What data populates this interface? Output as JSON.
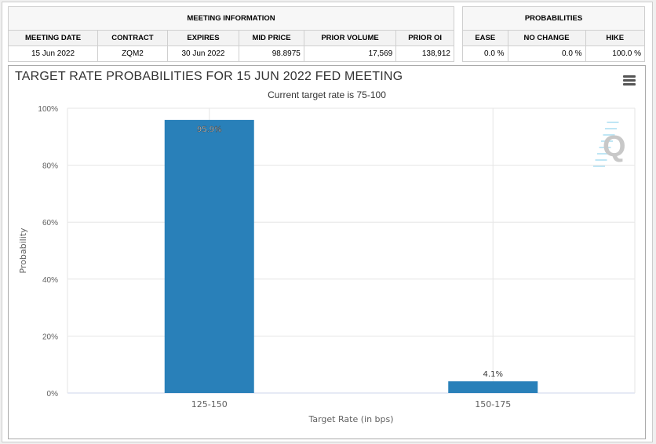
{
  "meeting_info": {
    "title": "MEETING INFORMATION",
    "columns": [
      "MEETING DATE",
      "CONTRACT",
      "EXPIRES",
      "MID PRICE",
      "PRIOR VOLUME",
      "PRIOR OI"
    ],
    "row": [
      "15 Jun 2022",
      "ZQM2",
      "30 Jun 2022",
      "98.8975",
      "17,569",
      "138,912"
    ]
  },
  "probabilities": {
    "title": "PROBABILITIES",
    "columns": [
      "EASE",
      "NO CHANGE",
      "HIKE"
    ],
    "row": [
      "0.0 %",
      "0.0 %",
      "100.0 %"
    ]
  },
  "chart_data": {
    "type": "bar",
    "title": "TARGET RATE PROBABILITIES FOR 15 JUN 2022 FED MEETING",
    "subtitle": "Current target rate is 75-100",
    "categories": [
      "125-150",
      "150-175"
    ],
    "values": [
      95.9,
      4.1
    ],
    "data_labels": [
      "95.9%",
      "4.1%"
    ],
    "xlabel": "Target Rate (in bps)",
    "ylabel": "Probability",
    "ylim": [
      0,
      100
    ],
    "yticks": [
      "0%",
      "20%",
      "40%",
      "60%",
      "80%",
      "100%"
    ],
    "bar_color": "#2980b9",
    "grid": true
  }
}
